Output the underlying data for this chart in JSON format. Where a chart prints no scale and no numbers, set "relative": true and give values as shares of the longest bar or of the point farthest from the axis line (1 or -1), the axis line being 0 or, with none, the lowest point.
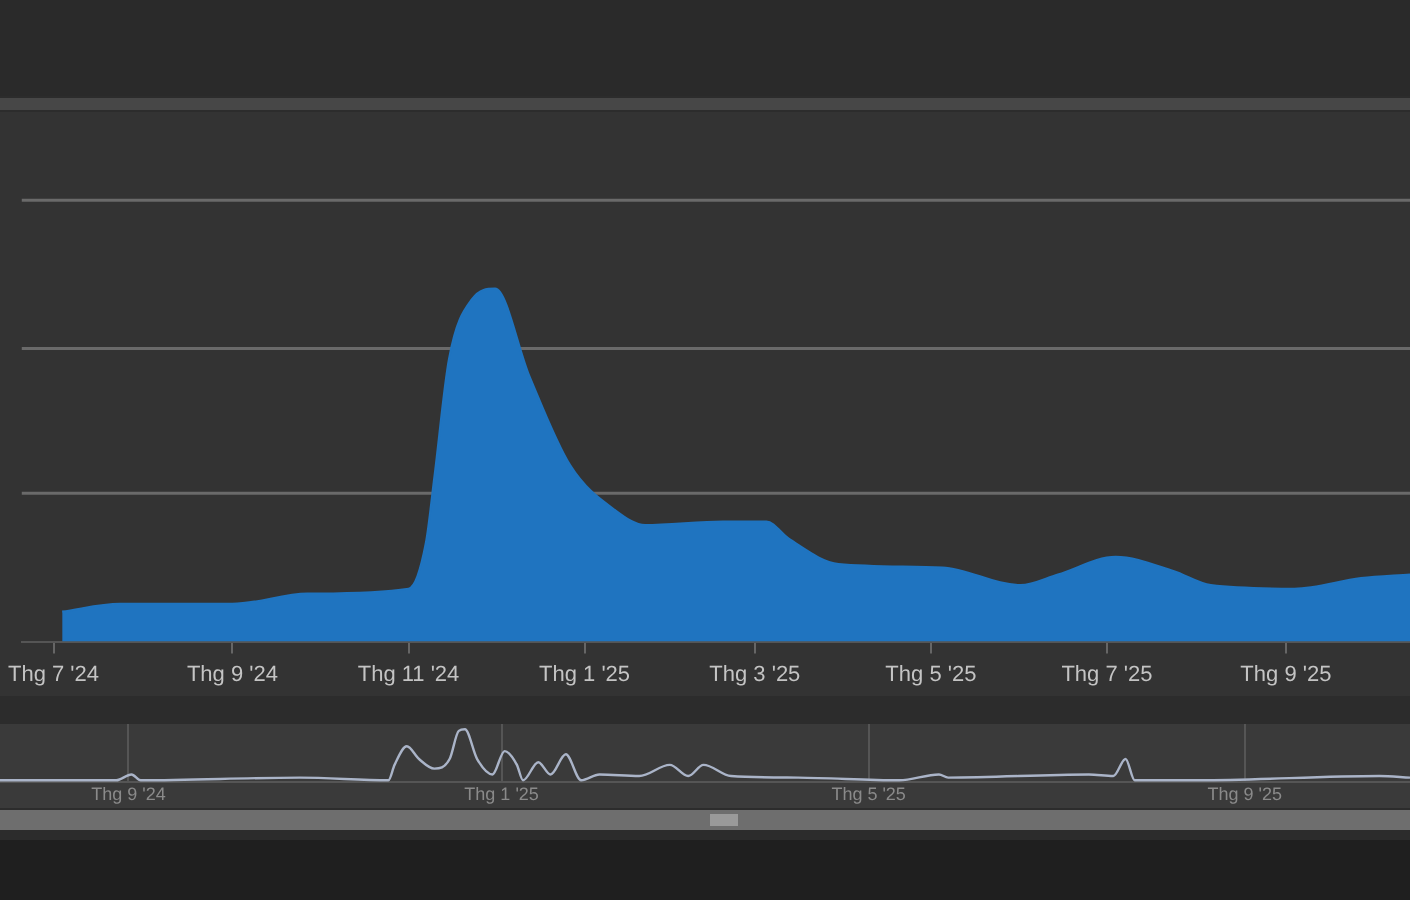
{
  "chart_data": [
    {
      "type": "area",
      "relative": true,
      "color": "#1f74c0",
      "ref_lines": [
        {
          "axis": "y",
          "value": 0.42,
          "color": "#6a6a6a"
        },
        {
          "axis": "y",
          "value": 0.83,
          "color": "#6a6a6a"
        },
        {
          "axis": "y",
          "value": 1.25,
          "color": "#6a6a6a"
        }
      ],
      "x": [
        "2024-07-04",
        "2024-07-24",
        "2024-09-01",
        "2024-09-27",
        "2024-11-01",
        "2024-11-07",
        "2024-11-10",
        "2024-11-15",
        "2024-11-23",
        "2024-12-01",
        "2024-12-13",
        "2024-12-27",
        "2025-01-12",
        "2025-01-22",
        "2025-02-18",
        "2025-03-05",
        "2025-03-13",
        "2025-03-30",
        "2025-05-05",
        "2025-06-01",
        "2025-06-14",
        "2025-07-04",
        "2025-07-24",
        "2025-08-06",
        "2025-09-04",
        "2025-09-27",
        "2025-10-14"
      ],
      "values": [
        0.085,
        0.107,
        0.107,
        0.136,
        0.15,
        0.28,
        0.47,
        0.8,
        0.97,
        1.0,
        0.75,
        0.5,
        0.37,
        0.33,
        0.34,
        0.34,
        0.29,
        0.22,
        0.21,
        0.16,
        0.19,
        0.24,
        0.2,
        0.16,
        0.15,
        0.18,
        0.19
      ],
      "xlim": [
        "2024-06-20",
        "2025-10-14"
      ],
      "xticks": [
        {
          "value": "2024-07-01",
          "label": "Thg 7 '24"
        },
        {
          "value": "2024-09-01",
          "label": "Thg 9 '24"
        },
        {
          "value": "2024-11-01",
          "label": "Thg 11 '24"
        },
        {
          "value": "2025-01-01",
          "label": "Thg 1 '25"
        },
        {
          "value": "2025-03-01",
          "label": "Thg 3 '25"
        },
        {
          "value": "2025-05-01",
          "label": "Thg 5 '25"
        },
        {
          "value": "2025-07-01",
          "label": "Thg 7 '25"
        },
        {
          "value": "2025-09-01",
          "label": "Thg 9 '25"
        }
      ]
    },
    {
      "type": "line",
      "relative": true,
      "color": "#aab4c8",
      "grid": "x",
      "x": [
        "2024-07-21",
        "2024-08-28",
        "2024-09-02",
        "2024-09-05",
        "2024-10-27",
        "2024-11-25",
        "2024-11-27",
        "2024-12-01",
        "2024-12-05",
        "2024-12-10",
        "2024-12-15",
        "2024-12-18",
        "2024-12-20",
        "2024-12-24",
        "2024-12-29",
        "2025-01-02",
        "2025-01-06",
        "2025-01-08",
        "2025-01-13",
        "2025-01-17",
        "2025-01-22",
        "2025-01-27",
        "2025-02-02",
        "2025-02-15",
        "2025-02-25",
        "2025-03-03",
        "2025-03-08",
        "2025-03-17",
        "2025-04-08",
        "2025-05-11",
        "2025-05-24",
        "2025-05-27",
        "2025-07-12",
        "2025-07-20",
        "2025-07-24",
        "2025-07-27",
        "2025-08-17",
        "2025-10-15",
        "2025-10-25"
      ],
      "values": [
        0.04,
        0.04,
        0.15,
        0.04,
        0.09,
        0.04,
        0.33,
        0.68,
        0.44,
        0.26,
        0.44,
        0.97,
        1.0,
        0.44,
        0.15,
        0.59,
        0.33,
        0.04,
        0.38,
        0.15,
        0.53,
        0.04,
        0.15,
        0.12,
        0.33,
        0.12,
        0.33,
        0.12,
        0.09,
        0.04,
        0.15,
        0.09,
        0.15,
        0.12,
        0.44,
        0.04,
        0.04,
        0.12,
        0.09
      ],
      "xlim": [
        "2024-07-21",
        "2025-10-25"
      ],
      "xticks": [
        {
          "value": "2024-09-01",
          "label": "Thg 9 '24"
        },
        {
          "value": "2025-01-01",
          "label": "Thg 1 '25"
        },
        {
          "value": "2025-05-01",
          "label": "Thg 5 '25"
        },
        {
          "value": "2025-09-01",
          "label": "Thg 9 '25"
        }
      ]
    }
  ]
}
